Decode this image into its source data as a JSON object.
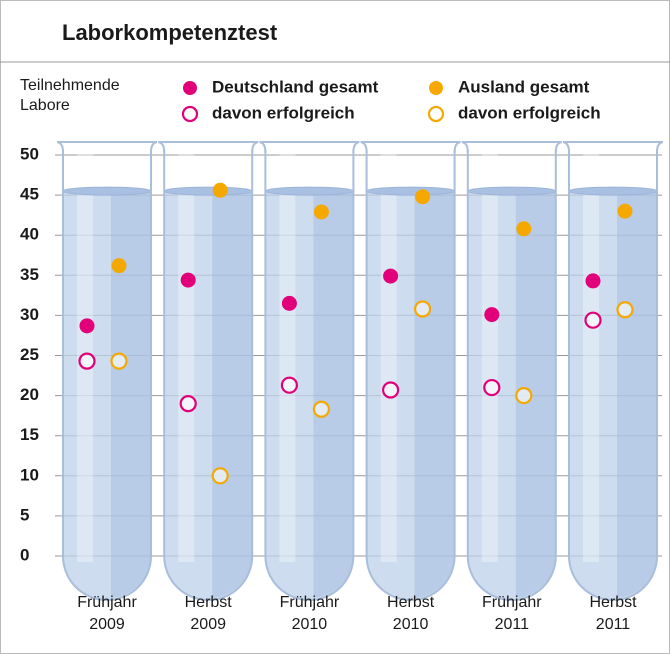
{
  "chart_data": {
    "type": "scatter",
    "title": "Laborkompetenztest",
    "y_label": [
      "Teilnehmende",
      "Labore"
    ],
    "categories": [
      [
        "Frühjahr",
        "2009"
      ],
      [
        "Herbst",
        "2009"
      ],
      [
        "Frühjahr",
        "2010"
      ],
      [
        "Herbst",
        "2010"
      ],
      [
        "Frühjahr",
        "2011"
      ],
      [
        "Herbst",
        "2011"
      ]
    ],
    "series": [
      {
        "name": "Deutschland gesamt",
        "color": "#e2007a",
        "marker": "filled",
        "values": [
          28.7,
          34.4,
          31.5,
          34.9,
          30.1,
          34.3
        ]
      },
      {
        "name": "davon erfolgreich",
        "color": "#e2007a",
        "marker": "open",
        "values": [
          24.3,
          19,
          21.3,
          20.7,
          21,
          29.4
        ]
      },
      {
        "name": "Ausland gesamt",
        "color": "#f5a800",
        "marker": "filled",
        "values": [
          36.2,
          45.6,
          42.9,
          44.8,
          40.8,
          43
        ]
      },
      {
        "name": "davon erfolgreich",
        "color": "#f5a800",
        "marker": "open",
        "values": [
          24.3,
          10,
          18.3,
          30.8,
          20,
          30.7
        ]
      }
    ],
    "ylim": [
      0,
      50
    ],
    "yticks": [
      0,
      5,
      10,
      15,
      20,
      25,
      30,
      35,
      40,
      45,
      50
    ],
    "grid": true
  }
}
